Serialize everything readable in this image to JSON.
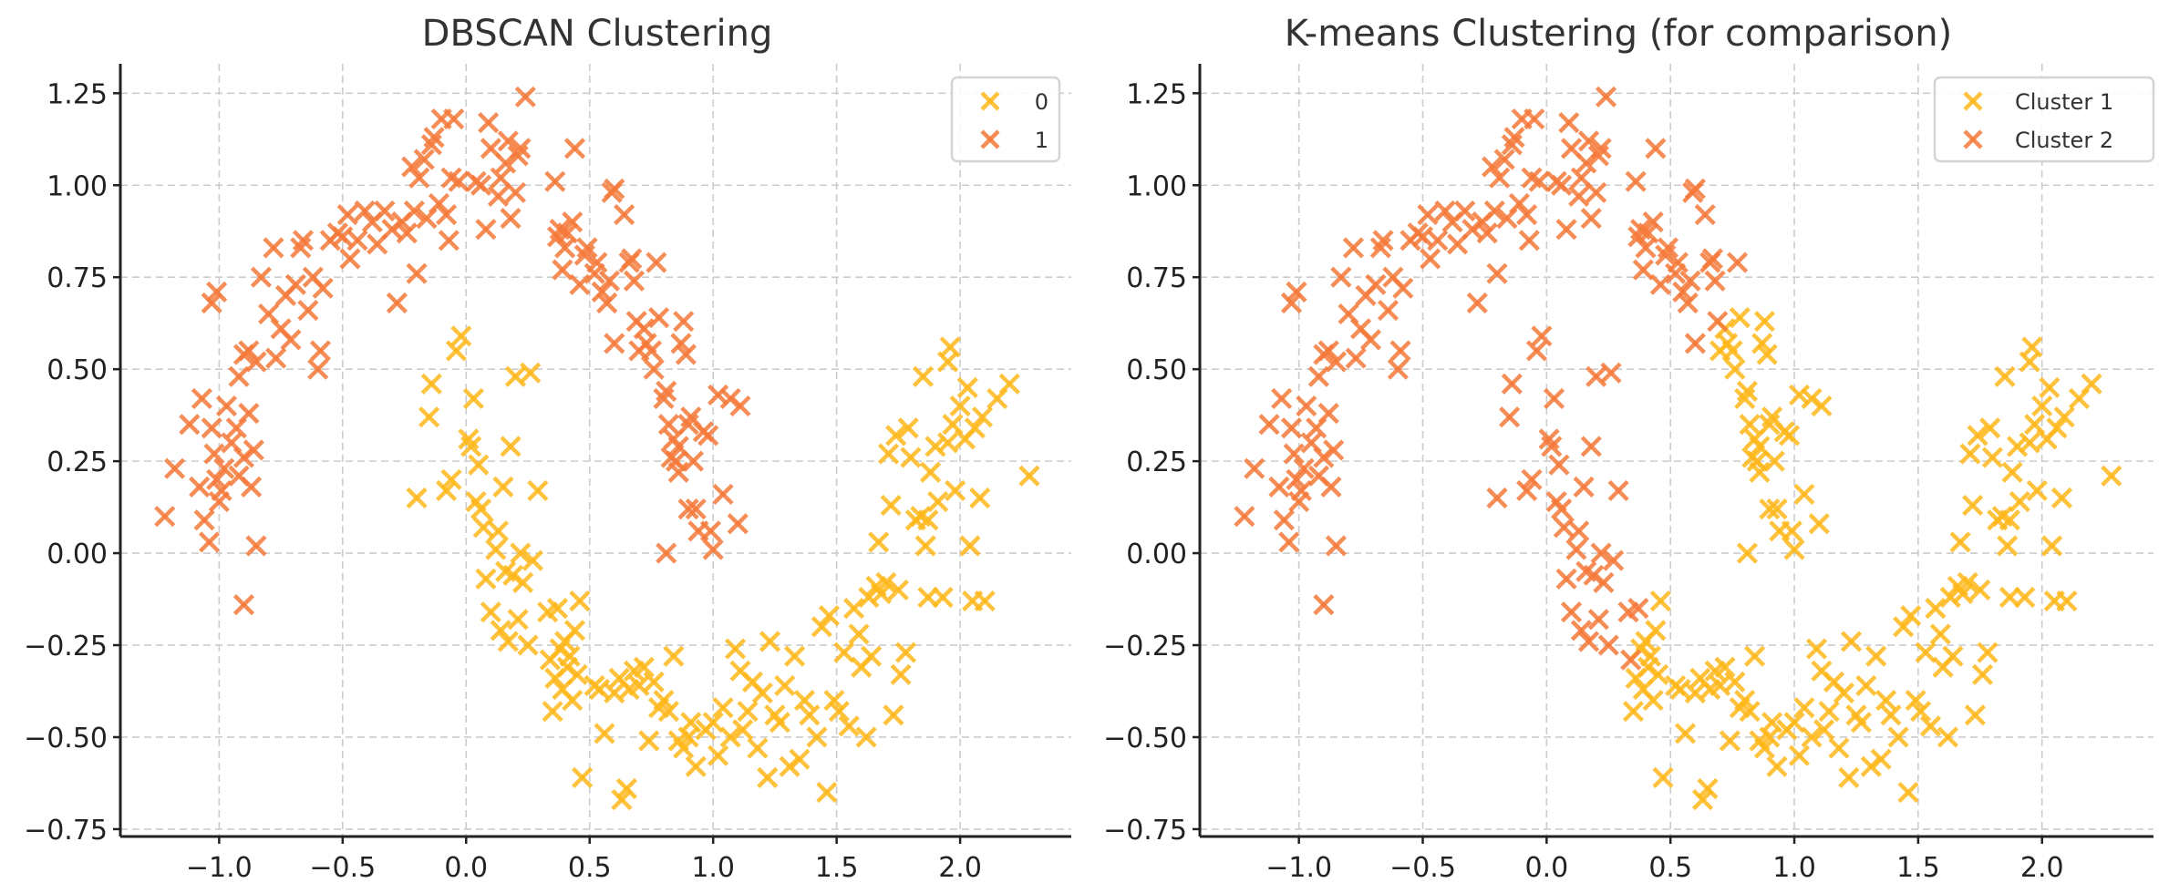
{
  "chart_data": [
    {
      "type": "scatter",
      "title": "DBSCAN Clustering",
      "xlabel": "",
      "ylabel": "",
      "xlim": [
        -1.4,
        2.45
      ],
      "ylim": [
        -0.77,
        1.33
      ],
      "xticks": [
        -1.0,
        -0.5,
        0.0,
        0.5,
        1.0,
        1.5,
        2.0
      ],
      "xtick_labels": [
        "−1.0",
        "−0.5",
        "0.0",
        "0.5",
        "1.0",
        "1.5",
        "2.0"
      ],
      "yticks": [
        1.25,
        1.0,
        0.75,
        0.5,
        0.25,
        0.0,
        -0.25,
        -0.5,
        -0.75
      ],
      "ytick_labels": [
        "1.25",
        "1.00",
        "0.75",
        "0.50",
        "0.25",
        "0.00",
        "−0.25",
        "−0.50",
        "−0.75"
      ],
      "grid": true,
      "marker": "x",
      "legend": {
        "placement": "top-right",
        "entries": [
          {
            "label": "0",
            "color": "#FFB71B"
          },
          {
            "label": "1",
            "color": "#F5793A"
          }
        ]
      },
      "label_index": 2
    },
    {
      "type": "scatter",
      "title": "K-means Clustering (for comparison)",
      "xlabel": "",
      "ylabel": "",
      "xlim": [
        -1.4,
        2.45
      ],
      "ylim": [
        -0.77,
        1.33
      ],
      "xticks": [
        -1.0,
        -0.5,
        0.0,
        0.5,
        1.0,
        1.5,
        2.0
      ],
      "xtick_labels": [
        "−1.0",
        "−0.5",
        "0.0",
        "0.5",
        "1.0",
        "1.5",
        "2.0"
      ],
      "yticks": [
        1.25,
        1.0,
        0.75,
        0.5,
        0.25,
        0.0,
        -0.25,
        -0.5,
        -0.75
      ],
      "ytick_labels": [
        "1.25",
        "1.00",
        "0.75",
        "0.50",
        "0.25",
        "0.00",
        "−0.25",
        "−0.50",
        "−0.75"
      ],
      "grid": true,
      "marker": "x",
      "legend": {
        "placement": "top-right",
        "entries": [
          {
            "label": "Cluster 1",
            "color": "#FFB71B"
          },
          {
            "label": "Cluster 2",
            "color": "#F5793A"
          }
        ]
      },
      "label_index": 3
    }
  ],
  "points_note": "each point: [x, y, dbscan_label, kmeans_label]; label 0 = first legend entry (yellow), 1 = second (orange)",
  "points": [
    [
      -1.22,
      0.1,
      1,
      1
    ],
    [
      -1.18,
      0.23,
      1,
      1
    ],
    [
      -1.12,
      0.35,
      1,
      1
    ],
    [
      -1.07,
      0.42,
      1,
      1
    ],
    [
      -1.08,
      0.18,
      1,
      1
    ],
    [
      -1.06,
      0.09,
      1,
      1
    ],
    [
      -1.04,
      0.03,
      1,
      1
    ],
    [
      -1.03,
      0.34,
      1,
      1
    ],
    [
      -1.02,
      0.27,
      1,
      1
    ],
    [
      -1.01,
      0.2,
      1,
      1
    ],
    [
      -1.0,
      0.14,
      1,
      1
    ],
    [
      -0.99,
      0.17,
      1,
      1
    ],
    [
      -0.98,
      0.23,
      1,
      1
    ],
    [
      -0.97,
      0.4,
      1,
      1
    ],
    [
      -0.95,
      0.3,
      1,
      1
    ],
    [
      -0.93,
      0.34,
      1,
      1
    ],
    [
      -0.92,
      0.21,
      1,
      1
    ],
    [
      -0.9,
      0.26,
      1,
      1
    ],
    [
      -0.88,
      0.38,
      1,
      1
    ],
    [
      -0.87,
      0.18,
      1,
      1
    ],
    [
      -0.86,
      0.28,
      1,
      1
    ],
    [
      -0.85,
      0.02,
      1,
      1
    ],
    [
      -0.9,
      -0.14,
      1,
      1
    ],
    [
      -1.03,
      0.68,
      1,
      1
    ],
    [
      -1.01,
      0.71,
      1,
      1
    ],
    [
      -0.92,
      0.48,
      1,
      1
    ],
    [
      -0.9,
      0.54,
      1,
      1
    ],
    [
      -0.88,
      0.55,
      1,
      1
    ],
    [
      -0.85,
      0.52,
      1,
      1
    ],
    [
      -0.83,
      0.75,
      1,
      1
    ],
    [
      -0.8,
      0.65,
      1,
      1
    ],
    [
      -0.78,
      0.83,
      1,
      1
    ],
    [
      -0.77,
      0.53,
      1,
      1
    ],
    [
      -0.75,
      0.61,
      1,
      1
    ],
    [
      -0.73,
      0.7,
      1,
      1
    ],
    [
      -0.71,
      0.58,
      1,
      1
    ],
    [
      -0.69,
      0.73,
      1,
      1
    ],
    [
      -0.67,
      0.83,
      1,
      1
    ],
    [
      -0.66,
      0.85,
      1,
      1
    ],
    [
      -0.64,
      0.66,
      1,
      1
    ],
    [
      -0.62,
      0.75,
      1,
      1
    ],
    [
      -0.6,
      0.5,
      1,
      1
    ],
    [
      -0.59,
      0.55,
      1,
      1
    ],
    [
      -0.58,
      0.72,
      1,
      1
    ],
    [
      -0.55,
      0.85,
      1,
      1
    ],
    [
      -0.52,
      0.87,
      1,
      1
    ],
    [
      -0.5,
      0.86,
      1,
      1
    ],
    [
      -0.48,
      0.92,
      1,
      1
    ],
    [
      -0.47,
      0.8,
      1,
      1
    ],
    [
      -0.44,
      0.85,
      1,
      1
    ],
    [
      -0.41,
      0.93,
      1,
      1
    ],
    [
      -0.38,
      0.9,
      1,
      1
    ],
    [
      -0.36,
      0.84,
      1,
      1
    ],
    [
      -0.33,
      0.93,
      1,
      1
    ],
    [
      -0.3,
      0.88,
      1,
      1
    ],
    [
      -0.28,
      0.68,
      1,
      1
    ],
    [
      -0.26,
      0.9,
      1,
      1
    ],
    [
      -0.24,
      0.87,
      1,
      1
    ],
    [
      -0.22,
      1.05,
      1,
      1
    ],
    [
      -0.21,
      0.93,
      1,
      1
    ],
    [
      -0.2,
      0.76,
      1,
      1
    ],
    [
      -0.19,
      1.02,
      1,
      1
    ],
    [
      -0.17,
      1.07,
      1,
      1
    ],
    [
      -0.16,
      0.91,
      1,
      1
    ],
    [
      -0.14,
      1.11,
      1,
      1
    ],
    [
      -0.13,
      1.13,
      1,
      1
    ],
    [
      -0.11,
      0.95,
      1,
      1
    ],
    [
      -0.1,
      1.18,
      1,
      1
    ],
    [
      -0.08,
      0.92,
      1,
      1
    ],
    [
      -0.07,
      0.85,
      1,
      1
    ],
    [
      -0.06,
      1.02,
      1,
      1
    ],
    [
      -0.05,
      1.18,
      1,
      1
    ],
    [
      -0.03,
      1.01,
      1,
      1
    ],
    [
      0.04,
      1.01,
      1,
      1
    ],
    [
      0.06,
      1.0,
      1,
      1
    ],
    [
      0.08,
      0.88,
      1,
      1
    ],
    [
      0.09,
      1.17,
      1,
      1
    ],
    [
      0.1,
      1.1,
      1,
      1
    ],
    [
      0.13,
      0.97,
      1,
      1
    ],
    [
      0.14,
      1.02,
      1,
      1
    ],
    [
      0.16,
      1.06,
      1,
      1
    ],
    [
      0.17,
      1.12,
      1,
      1
    ],
    [
      0.18,
      0.91,
      1,
      1
    ],
    [
      0.2,
      0.98,
      1,
      1
    ],
    [
      0.21,
      1.08,
      1,
      1
    ],
    [
      0.22,
      1.1,
      1,
      1
    ],
    [
      0.24,
      1.24,
      1,
      1
    ],
    [
      0.36,
      1.01,
      1,
      1
    ],
    [
      0.37,
      0.86,
      1,
      1
    ],
    [
      0.38,
      0.88,
      1,
      1
    ],
    [
      0.39,
      0.77,
      1,
      1
    ],
    [
      0.4,
      0.83,
      1,
      1
    ],
    [
      0.41,
      0.87,
      1,
      1
    ],
    [
      0.43,
      0.9,
      1,
      1
    ],
    [
      0.44,
      1.1,
      1,
      1
    ],
    [
      0.46,
      0.73,
      1,
      1
    ],
    [
      0.48,
      0.81,
      1,
      1
    ],
    [
      0.49,
      0.83,
      1,
      1
    ],
    [
      0.52,
      0.76,
      1,
      1
    ],
    [
      0.53,
      0.79,
      1,
      1
    ],
    [
      0.55,
      0.71,
      1,
      1
    ],
    [
      0.57,
      0.68,
      1,
      1
    ],
    [
      0.58,
      0.74,
      1,
      1
    ],
    [
      0.59,
      0.98,
      1,
      1
    ],
    [
      0.6,
      0.57,
      1,
      1
    ],
    [
      0.6,
      0.99,
      1,
      1
    ],
    [
      0.64,
      0.92,
      1,
      1
    ],
    [
      0.66,
      0.79,
      1,
      1
    ],
    [
      0.67,
      0.8,
      1,
      1
    ],
    [
      0.68,
      0.74,
      1,
      1
    ],
    [
      0.69,
      0.63,
      1,
      1
    ],
    [
      0.7,
      0.55,
      1,
      0
    ],
    [
      0.72,
      0.61,
      1,
      0
    ],
    [
      0.73,
      0.57,
      1,
      0
    ],
    [
      0.75,
      0.55,
      1,
      0
    ],
    [
      0.76,
      0.5,
      1,
      0
    ],
    [
      0.77,
      0.79,
      1,
      1
    ],
    [
      0.78,
      0.64,
      1,
      0
    ],
    [
      0.8,
      0.42,
      1,
      0
    ],
    [
      0.81,
      0.44,
      1,
      0
    ],
    [
      0.82,
      0.35,
      1,
      0
    ],
    [
      0.83,
      0.26,
      1,
      0
    ],
    [
      0.84,
      0.31,
      1,
      0
    ],
    [
      0.86,
      0.29,
      1,
      0
    ],
    [
      0.87,
      0.57,
      1,
      0
    ],
    [
      0.88,
      0.63,
      1,
      0
    ],
    [
      0.89,
      0.54,
      1,
      0
    ],
    [
      0.9,
      0.35,
      1,
      0
    ],
    [
      0.91,
      0.37,
      1,
      0
    ],
    [
      0.92,
      0.25,
      1,
      0
    ],
    [
      0.93,
      0.12,
      1,
      0
    ],
    [
      0.94,
      0.06,
      1,
      0
    ],
    [
      0.96,
      0.33,
      1,
      0
    ],
    [
      0.98,
      0.32,
      1,
      0
    ],
    [
      0.99,
      0.06,
      1,
      0
    ],
    [
      1.0,
      0.01,
      1,
      0
    ],
    [
      1.02,
      0.43,
      1,
      0
    ],
    [
      1.04,
      0.16,
      1,
      0
    ],
    [
      1.07,
      0.42,
      1,
      0
    ],
    [
      1.1,
      0.08,
      1,
      0
    ],
    [
      1.11,
      0.4,
      1,
      0
    ],
    [
      0.81,
      0.0,
      1,
      0
    ],
    [
      0.86,
      0.22,
      1,
      0
    ],
    [
      0.9,
      0.12,
      1,
      0
    ],
    [
      0.85,
      0.25,
      1,
      0
    ],
    [
      -0.2,
      0.15,
      0,
      1
    ],
    [
      -0.15,
      0.37,
      0,
      1
    ],
    [
      -0.14,
      0.46,
      0,
      1
    ],
    [
      -0.08,
      0.17,
      0,
      1
    ],
    [
      -0.06,
      0.2,
      0,
      1
    ],
    [
      -0.04,
      0.55,
      0,
      1
    ],
    [
      -0.02,
      0.59,
      0,
      1
    ],
    [
      0.01,
      0.31,
      0,
      1
    ],
    [
      0.02,
      0.29,
      0,
      1
    ],
    [
      0.03,
      0.42,
      0,
      1
    ],
    [
      0.04,
      0.14,
      0,
      1
    ],
    [
      0.05,
      0.24,
      0,
      1
    ],
    [
      0.06,
      0.12,
      0,
      1
    ],
    [
      0.07,
      0.07,
      0,
      1
    ],
    [
      0.08,
      -0.07,
      0,
      1
    ],
    [
      0.1,
      -0.16,
      0,
      1
    ],
    [
      0.12,
      0.01,
      0,
      1
    ],
    [
      0.13,
      0.06,
      0,
      1
    ],
    [
      0.14,
      -0.21,
      0,
      1
    ],
    [
      0.15,
      0.18,
      0,
      1
    ],
    [
      0.16,
      -0.05,
      0,
      1
    ],
    [
      0.17,
      -0.24,
      0,
      1
    ],
    [
      0.18,
      0.29,
      0,
      1
    ],
    [
      0.19,
      -0.06,
      0,
      1
    ],
    [
      0.2,
      0.48,
      0,
      1
    ],
    [
      0.21,
      -0.18,
      0,
      1
    ],
    [
      0.22,
      0.0,
      0,
      1
    ],
    [
      0.23,
      -0.08,
      0,
      1
    ],
    [
      0.25,
      -0.25,
      0,
      1
    ],
    [
      0.26,
      0.49,
      0,
      1
    ],
    [
      0.27,
      -0.02,
      0,
      1
    ],
    [
      0.29,
      0.17,
      0,
      1
    ],
    [
      0.33,
      -0.16,
      0,
      1
    ],
    [
      0.34,
      -0.29,
      0,
      1
    ],
    [
      0.35,
      -0.43,
      0,
      0
    ],
    [
      0.36,
      -0.34,
      0,
      0
    ],
    [
      0.37,
      -0.15,
      0,
      1
    ],
    [
      0.38,
      -0.26,
      0,
      0
    ],
    [
      0.39,
      -0.37,
      0,
      0
    ],
    [
      0.4,
      -0.24,
      0,
      0
    ],
    [
      0.41,
      -0.31,
      0,
      0
    ],
    [
      0.42,
      -0.28,
      0,
      0
    ],
    [
      0.43,
      -0.4,
      0,
      0
    ],
    [
      0.44,
      -0.21,
      0,
      0
    ],
    [
      0.45,
      -0.33,
      0,
      0
    ],
    [
      0.46,
      -0.13,
      0,
      0
    ],
    [
      0.47,
      -0.61,
      0,
      0
    ],
    [
      0.52,
      -0.36,
      0,
      0
    ],
    [
      0.54,
      -0.37,
      0,
      0
    ],
    [
      0.56,
      -0.49,
      0,
      0
    ],
    [
      0.6,
      -0.38,
      0,
      0
    ],
    [
      0.62,
      -0.34,
      0,
      0
    ],
    [
      0.63,
      -0.67,
      0,
      0
    ],
    [
      0.65,
      -0.64,
      0,
      0
    ],
    [
      0.66,
      -0.37,
      0,
      0
    ],
    [
      0.68,
      -0.32,
      0,
      0
    ],
    [
      0.7,
      -0.36,
      0,
      0
    ],
    [
      0.72,
      -0.31,
      0,
      0
    ],
    [
      0.74,
      -0.51,
      0,
      0
    ],
    [
      0.76,
      -0.35,
      0,
      0
    ],
    [
      0.78,
      -0.42,
      0,
      0
    ],
    [
      0.8,
      -0.4,
      0,
      0
    ],
    [
      0.82,
      -0.43,
      0,
      0
    ],
    [
      0.84,
      -0.28,
      0,
      0
    ],
    [
      0.86,
      -0.51,
      0,
      0
    ],
    [
      0.88,
      -0.53,
      0,
      0
    ],
    [
      0.9,
      -0.5,
      0,
      0
    ],
    [
      0.91,
      -0.46,
      0,
      0
    ],
    [
      0.93,
      -0.58,
      0,
      0
    ],
    [
      0.97,
      -0.48,
      0,
      0
    ],
    [
      1.0,
      -0.46,
      0,
      0
    ],
    [
      1.02,
      -0.55,
      0,
      0
    ],
    [
      1.04,
      -0.42,
      0,
      0
    ],
    [
      1.07,
      -0.5,
      0,
      0
    ],
    [
      1.09,
      -0.26,
      0,
      0
    ],
    [
      1.11,
      -0.32,
      0,
      0
    ],
    [
      1.12,
      -0.48,
      0,
      0
    ],
    [
      1.14,
      -0.43,
      0,
      0
    ],
    [
      1.16,
      -0.35,
      0,
      0
    ],
    [
      1.18,
      -0.53,
      0,
      0
    ],
    [
      1.2,
      -0.38,
      0,
      0
    ],
    [
      1.22,
      -0.61,
      0,
      0
    ],
    [
      1.23,
      -0.24,
      0,
      0
    ],
    [
      1.25,
      -0.44,
      0,
      0
    ],
    [
      1.27,
      -0.46,
      0,
      0
    ],
    [
      1.29,
      -0.36,
      0,
      0
    ],
    [
      1.31,
      -0.58,
      0,
      0
    ],
    [
      1.33,
      -0.28,
      0,
      0
    ],
    [
      1.35,
      -0.56,
      0,
      0
    ],
    [
      1.37,
      -0.4,
      0,
      0
    ],
    [
      1.39,
      -0.44,
      0,
      0
    ],
    [
      1.42,
      -0.5,
      0,
      0
    ],
    [
      1.44,
      -0.2,
      0,
      0
    ],
    [
      1.46,
      -0.65,
      0,
      0
    ],
    [
      1.47,
      -0.17,
      0,
      0
    ],
    [
      1.49,
      -0.4,
      0,
      0
    ],
    [
      1.51,
      -0.43,
      0,
      0
    ],
    [
      1.53,
      -0.27,
      0,
      0
    ],
    [
      1.55,
      -0.47,
      0,
      0
    ],
    [
      1.57,
      -0.15,
      0,
      0
    ],
    [
      1.59,
      -0.22,
      0,
      0
    ],
    [
      1.6,
      -0.31,
      0,
      0
    ],
    [
      1.62,
      -0.5,
      0,
      0
    ],
    [
      1.63,
      -0.12,
      0,
      0
    ],
    [
      1.64,
      -0.28,
      0,
      0
    ],
    [
      1.66,
      -0.09,
      0,
      0
    ],
    [
      1.67,
      0.03,
      0,
      0
    ],
    [
      1.68,
      -0.11,
      0,
      0
    ],
    [
      1.7,
      -0.08,
      0,
      0
    ],
    [
      1.71,
      0.27,
      0,
      0
    ],
    [
      1.72,
      0.13,
      0,
      0
    ],
    [
      1.73,
      -0.44,
      0,
      0
    ],
    [
      1.74,
      0.32,
      0,
      0
    ],
    [
      1.75,
      -0.1,
      0,
      0
    ],
    [
      1.76,
      -0.33,
      0,
      0
    ],
    [
      1.78,
      -0.27,
      0,
      0
    ],
    [
      1.79,
      0.34,
      0,
      0
    ],
    [
      1.8,
      0.26,
      0,
      0
    ],
    [
      1.82,
      0.09,
      0,
      0
    ],
    [
      1.84,
      0.1,
      0,
      0
    ],
    [
      1.85,
      0.48,
      0,
      0
    ],
    [
      1.86,
      0.02,
      0,
      0
    ],
    [
      1.87,
      -0.12,
      0,
      0
    ],
    [
      1.88,
      0.22,
      0,
      0
    ],
    [
      1.9,
      0.29,
      0,
      0
    ],
    [
      1.91,
      0.14,
      0,
      0
    ],
    [
      1.93,
      -0.12,
      0,
      0
    ],
    [
      1.95,
      0.52,
      0,
      0
    ],
    [
      1.96,
      0.56,
      0,
      0
    ],
    [
      1.97,
      0.35,
      0,
      0
    ],
    [
      1.98,
      0.17,
      0,
      0
    ],
    [
      2.0,
      0.4,
      0,
      0
    ],
    [
      2.02,
      0.31,
      0,
      0
    ],
    [
      2.03,
      0.45,
      0,
      0
    ],
    [
      2.04,
      0.02,
      0,
      0
    ],
    [
      2.05,
      -0.13,
      0,
      0
    ],
    [
      2.06,
      0.34,
      0,
      0
    ],
    [
      2.08,
      0.15,
      0,
      0
    ],
    [
      2.09,
      0.37,
      0,
      0
    ],
    [
      2.1,
      -0.13,
      0,
      0
    ],
    [
      2.15,
      0.42,
      0,
      0
    ],
    [
      2.2,
      0.46,
      0,
      0
    ],
    [
      2.28,
      0.21,
      0,
      0
    ],
    [
      1.87,
      0.09,
      0,
      0
    ],
    [
      1.95,
      0.3,
      0,
      0
    ]
  ]
}
